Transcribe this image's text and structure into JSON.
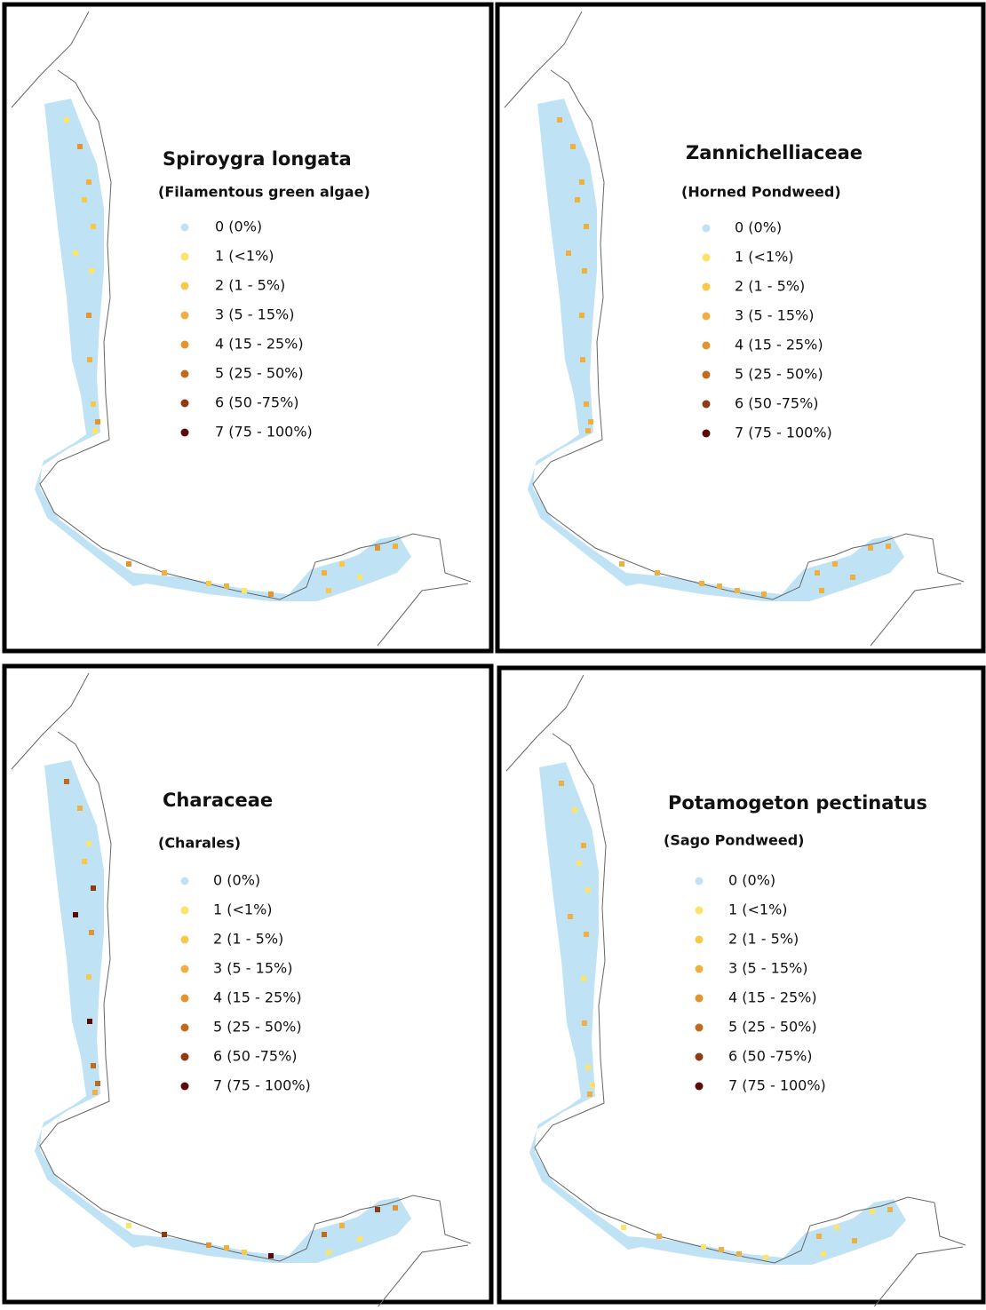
{
  "panels": [
    {
      "title": "Spiroygra longata",
      "subtitle": "(Filamentous green algae)"
    },
    {
      "title": "Zannichelliaceae",
      "subtitle": "(Horned Pondweed)"
    },
    {
      "title": "Characeae",
      "subtitle": "(Charales)"
    },
    {
      "title": "Potamogeton pectinatus",
      "subtitle": "(Sago Pondweed)"
    }
  ],
  "legend": [
    {
      "label": "0 (0%)",
      "color": "#bfe3f5"
    },
    {
      "label": "1 (<1%)",
      "color": "#fde36a"
    },
    {
      "label": "2 (1 - 5%)",
      "color": "#f8c84a"
    },
    {
      "label": "3 (5 - 15%)",
      "color": "#f0b040"
    },
    {
      "label": "4 (15 - 25%)",
      "color": "#e39330"
    },
    {
      "label": "5 (25 - 50%)",
      "color": "#c06a1c"
    },
    {
      "label": "6 (50 -75%)",
      "color": "#8f3a12"
    },
    {
      "label": "7 (75 - 100%)",
      "color": "#5c0a06"
    }
  ]
}
